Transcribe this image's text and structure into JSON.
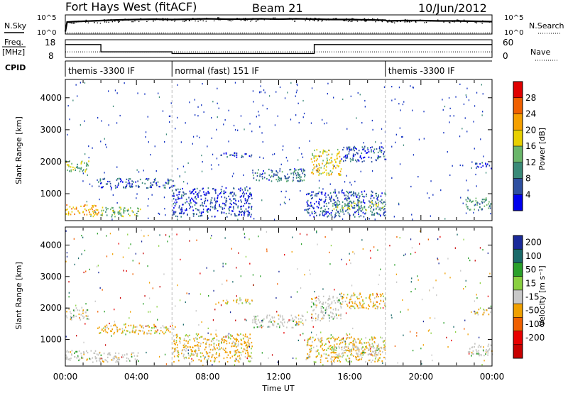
{
  "header": {
    "station": "Fort Hays West (fitACF)",
    "beam": "Beam 21",
    "date": "10/Jun/2012"
  },
  "top_panels": {
    "nsky_label": "N.Sky",
    "nsky_ticks": [
      "10^5",
      "10^0"
    ],
    "nsearch_label": "N.Search",
    "nsearch_ticks": [
      "10^5",
      "10^0"
    ],
    "freq_label": "Freq.",
    "freq_unit": "[MHz]",
    "freq_ticks": [
      "18",
      "8"
    ],
    "nave_label": "Nave",
    "nave_ticks": [
      "60",
      "0"
    ],
    "cpid_label": "CPID",
    "cpid_segments": [
      {
        "label": "themis -3300 IF",
        "start_hour": 0,
        "end_hour": 6
      },
      {
        "label": "normal (fast) 151 IF",
        "start_hour": 6,
        "end_hour": 18
      },
      {
        "label": "themis -3300 IF",
        "start_hour": 18,
        "end_hour": 24
      }
    ]
  },
  "colors": {
    "power_scale": [
      "#0000ee",
      "#2e4fa0",
      "#3a8a78",
      "#6ab66a",
      "#e8d000",
      "#f5a000",
      "#f06000",
      "#e00000"
    ],
    "velocity_scale": [
      "#1a2a9a",
      "#1a6a6a",
      "#2aa02a",
      "#8ad040",
      "#c8c8c8",
      "#f0a000",
      "#f06000",
      "#e80000",
      "#c80000"
    ],
    "velocity_gray": "#c4c4c0"
  },
  "chart_data": [
    {
      "type": "line",
      "name": "N.Sky / N.Search",
      "x": [
        0,
        0.1,
        0.5,
        1,
        2,
        3,
        4,
        5,
        6,
        7,
        8,
        9,
        10,
        11,
        12,
        13,
        14,
        15,
        16,
        17,
        18,
        18.1,
        19,
        20,
        21,
        22,
        23,
        24
      ],
      "y_sky_log": [
        0.5,
        3.2,
        3.3,
        3.4,
        3.6,
        3.8,
        3.9,
        4.0,
        3.9,
        4.0,
        4.1,
        4.0,
        4.0,
        4.1,
        4.0,
        4.1,
        4.0,
        3.9,
        3.9,
        3.8,
        3.7,
        3.5,
        3.6,
        3.6,
        3.5,
        3.5,
        3.4,
        3.3
      ],
      "y_search": 0,
      "ylim_log": [
        0,
        5
      ]
    },
    {
      "type": "line",
      "name": "Freq. / Nave",
      "x": [
        0,
        2,
        2,
        6,
        6,
        14,
        14,
        24
      ],
      "freq_mhz": [
        15.5,
        15.5,
        11,
        11,
        10,
        10,
        15.5,
        15.5
      ],
      "nave": [
        18,
        18,
        18,
        18,
        18,
        18,
        18,
        18
      ],
      "freq_lim": [
        8,
        18
      ],
      "nave_lim": [
        0,
        60
      ]
    },
    {
      "type": "heatmap",
      "title": "Power",
      "xlabel": "Time UT",
      "ylabel": "Slant Range [km]",
      "x_ticks": [
        "00:00",
        "04:00",
        "08:00",
        "12:00",
        "16:00",
        "20:00",
        "00:00"
      ],
      "y_ticks": [
        1000,
        2000,
        3000,
        4000
      ],
      "xlim": [
        0,
        24
      ],
      "ylim": [
        180,
        4550
      ],
      "colorbar_label": "Power [dB]",
      "colorbar_ticks": [
        4,
        8,
        12,
        16,
        20,
        24,
        28
      ],
      "colorbar_range": [
        0,
        32
      ],
      "bands": [
        {
          "t0": 0,
          "t1": 1.3,
          "r0": 1650,
          "r1": 2050,
          "p": 13
        },
        {
          "t0": 0,
          "t1": 2.0,
          "r0": 360,
          "r1": 680,
          "p": 22
        },
        {
          "t0": 1.5,
          "t1": 4.2,
          "r0": 300,
          "r1": 600,
          "p": 14
        },
        {
          "t0": 1.8,
          "t1": 6.2,
          "r0": 1200,
          "r1": 1500,
          "p": 7
        },
        {
          "t0": 6.0,
          "t1": 10.5,
          "r0": 300,
          "r1": 1200,
          "p": 5
        },
        {
          "t0": 8.5,
          "t1": 10.5,
          "r0": 2150,
          "r1": 2300,
          "p": 4
        },
        {
          "t0": 10.5,
          "t1": 13.5,
          "r0": 1400,
          "r1": 1800,
          "p": 8
        },
        {
          "t0": 13.8,
          "t1": 15.5,
          "r0": 1600,
          "r1": 2400,
          "p": 18
        },
        {
          "t0": 15.5,
          "t1": 18.0,
          "r0": 2000,
          "r1": 2500,
          "p": 6
        },
        {
          "t0": 13.5,
          "t1": 18.0,
          "r0": 300,
          "r1": 1100,
          "p": 6
        },
        {
          "t0": 15.0,
          "t1": 18.0,
          "r0": 500,
          "r1": 800,
          "p": 14
        },
        {
          "t0": 22.5,
          "t1": 24.0,
          "r0": 500,
          "r1": 900,
          "p": 10
        },
        {
          "t0": 23.0,
          "t1": 24.0,
          "r0": 1800,
          "r1": 2000,
          "p": 4
        }
      ]
    },
    {
      "type": "heatmap",
      "title": "Velocity",
      "xlabel": "Time UT",
      "ylabel": "Slant Range [km]",
      "x_ticks": [
        "00:00",
        "04:00",
        "08:00",
        "12:00",
        "16:00",
        "20:00",
        "00:00"
      ],
      "y_ticks": [
        1000,
        2000,
        3000,
        4000
      ],
      "xlim": [
        0,
        24
      ],
      "ylim": [
        180,
        4550
      ],
      "colorbar_label": "Velocity [m s⁻¹]",
      "colorbar_ticks": [
        200,
        100,
        50,
        15,
        -15,
        -50,
        -100,
        -200
      ]
    }
  ]
}
